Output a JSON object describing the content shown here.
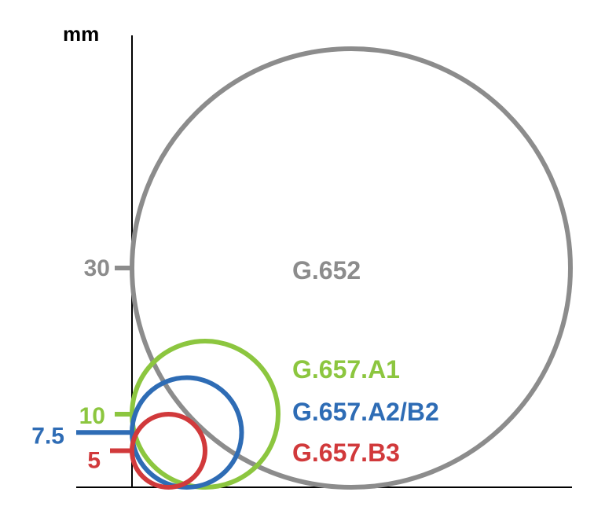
{
  "unit_label": "mm",
  "axis_color": "#000000",
  "circles": [
    {
      "name": "G.652",
      "diameter": 30,
      "tick_label": "30",
      "color": "#8c8c8c"
    },
    {
      "name": "G.657.A1",
      "diameter": 10,
      "tick_label": "10",
      "color": "#8cc63f"
    },
    {
      "name": "G.657.A2/B2",
      "diameter": 7.5,
      "tick_label": "7.5",
      "color": "#2e6cb5"
    },
    {
      "name": "G.657.B3",
      "diameter": 5,
      "tick_label": "5",
      "color": "#d1393b"
    }
  ]
}
